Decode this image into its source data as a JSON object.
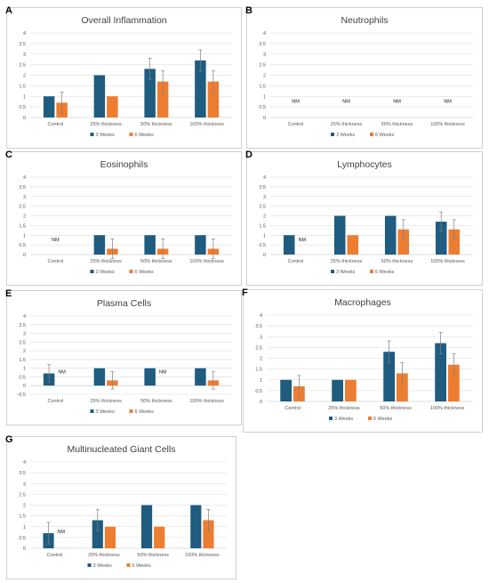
{
  "colors": {
    "weeks3": "#1f5c80",
    "weeks6": "#ed7d31",
    "error": "#7f7f7f",
    "grid": "#d9d9d9",
    "axis": "#bfbfbf"
  },
  "nm_label": "NM",
  "chart_data": [
    {
      "letter": "A",
      "type": "bar",
      "title": "Overall Inflammation",
      "categories": [
        "Control",
        "25% thickness",
        "50% thickness",
        "100% thickness"
      ],
      "ylim": [
        0,
        4
      ],
      "yticks": [
        "0",
        "0.5",
        "1",
        "1.5",
        "2",
        "2.5",
        "3",
        "3.5",
        "4"
      ],
      "series": [
        {
          "name": "3 Weeks",
          "values": [
            1,
            2,
            2.3,
            2.7
          ],
          "errors": [
            0,
            0,
            0.5,
            0.5
          ]
        },
        {
          "name": "6 Weeks",
          "values": [
            0.7,
            1,
            1.7,
            1.7
          ],
          "errors": [
            0.5,
            0,
            0.5,
            0.5
          ]
        }
      ]
    },
    {
      "letter": "B",
      "type": "bar",
      "title": "Neutrophils",
      "categories": [
        "Control",
        "25% thickness",
        "50% thickness",
        "100% thickness"
      ],
      "ylim": [
        0,
        4
      ],
      "yticks": [
        "0",
        "0.5",
        "1",
        "1.5",
        "2",
        "2.5",
        "3",
        "3.5",
        "4"
      ],
      "nm": [
        {
          "category": 0
        },
        {
          "category": 1
        },
        {
          "category": 2
        },
        {
          "category": 3
        }
      ],
      "series": [
        {
          "name": "3 Weeks",
          "values": [
            null,
            null,
            null,
            null
          ],
          "errors": [
            0,
            0,
            0,
            0
          ]
        },
        {
          "name": "6 Weeks",
          "values": [
            null,
            null,
            null,
            null
          ],
          "errors": [
            0,
            0,
            0,
            0
          ]
        }
      ]
    },
    {
      "letter": "C",
      "type": "bar",
      "title": "Eosinophils",
      "categories": [
        "Control",
        "25% thickness",
        "50% thickness",
        "100% thickness"
      ],
      "ylim": [
        0,
        4
      ],
      "yticks": [
        "0",
        "0.5",
        "1",
        "1.5",
        "2",
        "2.5",
        "3",
        "3.5",
        "4"
      ],
      "nm": [
        {
          "category": 0
        }
      ],
      "series": [
        {
          "name": "3 Weeks",
          "values": [
            null,
            1,
            1,
            1
          ],
          "errors": [
            0,
            0,
            0,
            0
          ]
        },
        {
          "name": "6 Weeks",
          "values": [
            null,
            0.3,
            0.3,
            0.3
          ],
          "errors": [
            0,
            0.5,
            0.5,
            0.5
          ]
        }
      ]
    },
    {
      "letter": "D",
      "type": "bar",
      "title": "Lymphocytes",
      "categories": [
        "Control",
        "25% thickness",
        "50% thickness",
        "100% thickness"
      ],
      "ylim": [
        0,
        4
      ],
      "yticks": [
        "0",
        "0.5",
        "1",
        "1.5",
        "2",
        "2.5",
        "3",
        "3.5",
        "4"
      ],
      "nm": [
        {
          "category": 0,
          "series": 1
        }
      ],
      "series": [
        {
          "name": "3 Weeks",
          "values": [
            1,
            2,
            2,
            1.7
          ],
          "errors": [
            0,
            0,
            0,
            0.5
          ]
        },
        {
          "name": "6 Weeks",
          "values": [
            null,
            1,
            1.3,
            1.3
          ],
          "errors": [
            0,
            0,
            0.5,
            0.5
          ]
        }
      ]
    },
    {
      "letter": "E",
      "type": "bar",
      "title": "Plasma Cells",
      "categories": [
        "Control",
        "25% thickness",
        "50% thickness",
        "100% thickness"
      ],
      "ylim": [
        -0.5,
        4
      ],
      "yticks": [
        "-0.5",
        "0",
        "0.5",
        "1",
        "1.5",
        "2",
        "2.5",
        "3",
        "3.5",
        "4"
      ],
      "nm": [
        {
          "category": 0,
          "series": 1
        },
        {
          "category": 2,
          "series": 1
        }
      ],
      "series": [
        {
          "name": "3 Weeks",
          "values": [
            0.7,
            1,
            1,
            1
          ],
          "errors": [
            0.5,
            0,
            0,
            0
          ]
        },
        {
          "name": "6 Weeks",
          "values": [
            null,
            0.3,
            null,
            0.3
          ],
          "errors": [
            0,
            0.5,
            0,
            0.5
          ]
        }
      ]
    },
    {
      "letter": "F",
      "type": "bar",
      "title": "Macrophages",
      "categories": [
        "Control",
        "25% thickness",
        "50% thickness",
        "100% thickness"
      ],
      "ylim": [
        0,
        4
      ],
      "yticks": [
        "0",
        "0.5",
        "1",
        "1.5",
        "2",
        "2.5",
        "3",
        "3.5",
        "4"
      ],
      "series": [
        {
          "name": "3 Weeks",
          "values": [
            1,
            1,
            2.3,
            2.7
          ],
          "errors": [
            0,
            0,
            0.5,
            0.5
          ]
        },
        {
          "name": "6 Weeks",
          "values": [
            0.7,
            1,
            1.3,
            1.7
          ],
          "errors": [
            0.5,
            0,
            0.5,
            0.5
          ]
        }
      ]
    },
    {
      "letter": "G",
      "type": "bar",
      "title": "Multinucleated Giant Cells",
      "categories": [
        "Control",
        "25% thickness",
        "50% thickness",
        "100% thickness"
      ],
      "ylim": [
        0,
        4
      ],
      "yticks": [
        "0",
        "0.5",
        "1",
        "1.5",
        "2",
        "2.5",
        "3",
        "3.5",
        "4"
      ],
      "nm": [
        {
          "category": 0,
          "series": 1
        }
      ],
      "series": [
        {
          "name": "3 Weeks",
          "values": [
            0.7,
            1.3,
            2,
            2
          ],
          "errors": [
            0.5,
            0.5,
            0,
            0
          ]
        },
        {
          "name": "6 Weeks",
          "values": [
            null,
            1,
            1,
            1.3
          ],
          "errors": [
            0,
            0,
            0,
            0.5
          ]
        }
      ]
    }
  ]
}
